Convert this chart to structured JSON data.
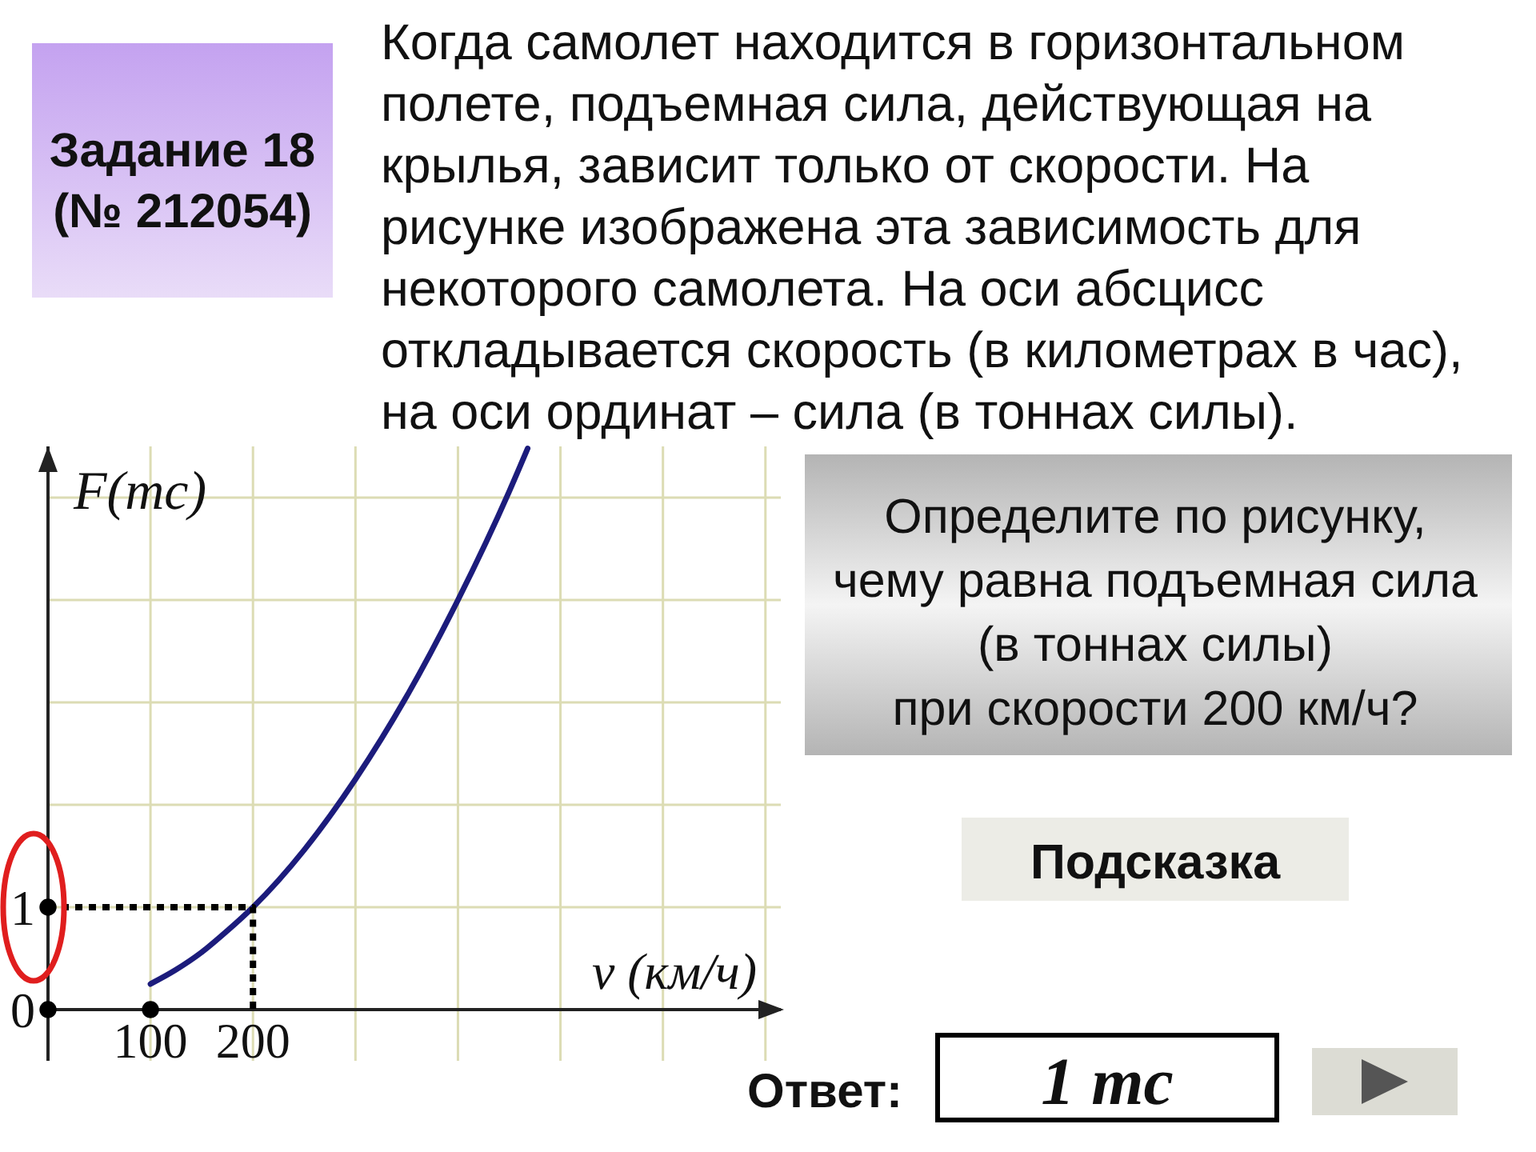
{
  "chart_data": {
    "type": "line",
    "title": "Задание 18\n(№ 212054)",
    "subtitle": "Когда самолет находится в горизонтальном\nполете, подъемная сила, действующая на\nкрылья, зависит только от скорости. На\nрисунке изображена эта зависимость для\nнекоторого самолета. На оси абсцисс\nоткладывается скорость (в километрах в час),\nна оси ординат – сила (в тоннах силы).",
    "xlabel": "v (км/ч)",
    "ylabel": "F(тс)",
    "annotations": [
      "Определите по рисунку,\nчему равна подъемная сила\n(в тоннах силы)\nпри скорости 200 км/ч?",
      "Подсказка",
      "Ответ:",
      "1 тс"
    ],
    "series": [
      {
        "color": "#1c1c7c",
        "x": [
          100,
          125,
          150,
          175,
          200,
          250,
          300,
          350,
          400,
          450,
          468
        ],
        "values": [
          0.25,
          0.39,
          0.56,
          0.77,
          1,
          1.56,
          2.25,
          3.06,
          4,
          5.06,
          5.48
        ]
      },
      {
        "color": "#000000",
        "line_style": "dotted",
        "marker": "none",
        "x": [
          0,
          200,
          200
        ],
        "values": [
          1,
          1,
          0
        ]
      },
      {
        "type": "scatter",
        "color": "#000000",
        "marker": "circle",
        "x": [
          0,
          0,
          100
        ],
        "values": [
          1,
          0,
          0
        ]
      }
    ],
    "xlim": [
      0,
      715
    ],
    "ylim": [
      -0.5,
      5.5
    ],
    "xticks": [
      100,
      200,
      {
        "value": 300,
        "label": null
      },
      {
        "value": 400,
        "label": null
      },
      {
        "value": 500,
        "label": null
      },
      {
        "value": 600,
        "label": null
      },
      {
        "value": 700,
        "label": null
      }
    ],
    "yticks": [
      0,
      1,
      {
        "value": 2,
        "label": null
      },
      {
        "value": 3,
        "label": null
      },
      {
        "value": 4,
        "label": null
      },
      {
        "value": 5,
        "label": null
      }
    ],
    "grid": true
  }
}
